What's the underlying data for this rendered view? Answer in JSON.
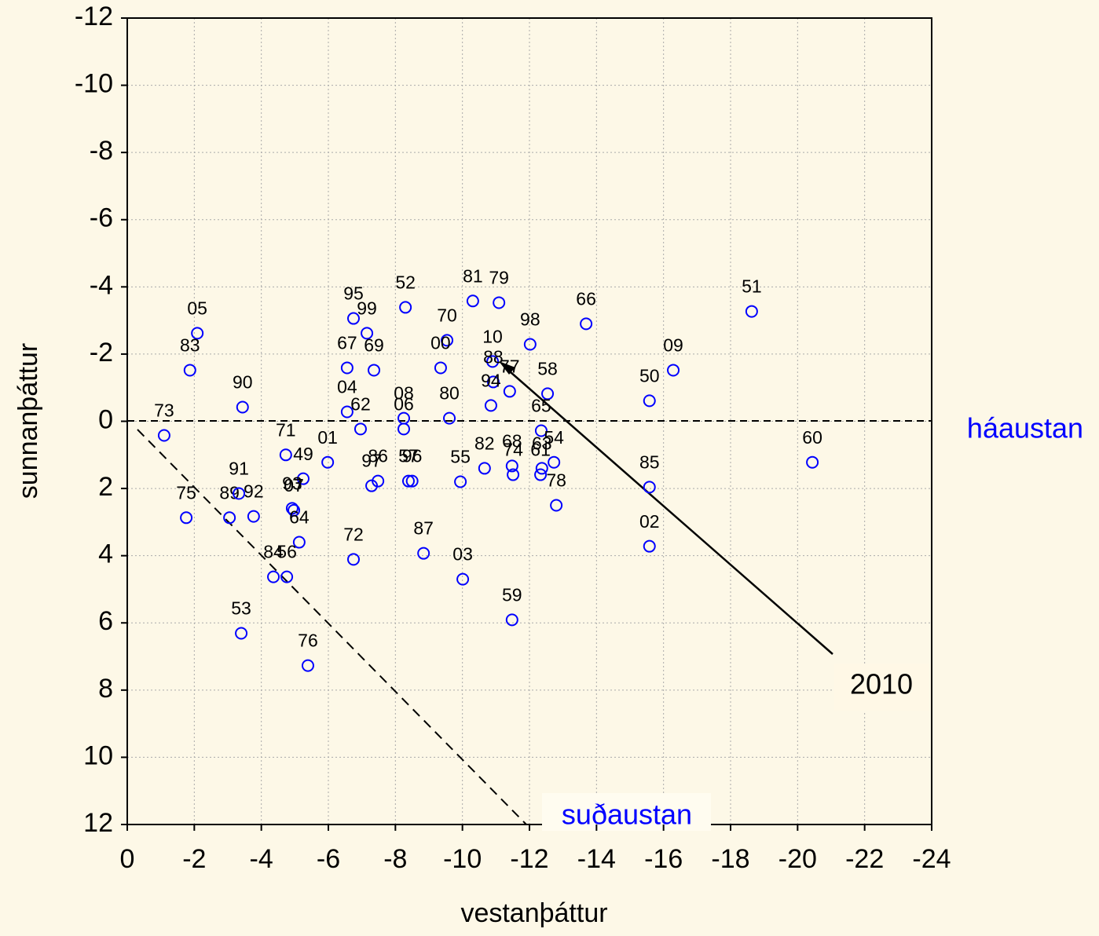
{
  "chart_data": {
    "type": "scatter",
    "x_label": "vestanþáttur",
    "y_label": "sunnanþáttur",
    "xlim": [
      0,
      -24
    ],
    "ylim": [
      -12,
      12
    ],
    "xticks": [
      0,
      -2,
      -4,
      -6,
      -8,
      -10,
      -12,
      -14,
      -16,
      -18,
      -20,
      -22,
      -24
    ],
    "yticks": [
      -12,
      -10,
      -8,
      -6,
      -4,
      -2,
      0,
      2,
      4,
      6,
      8,
      10,
      12
    ],
    "grid": true,
    "color": "#0000ff",
    "labels": [
      "05",
      "83",
      "90",
      "73",
      "75",
      "89",
      "91",
      "92",
      "71",
      "49",
      "01",
      "93",
      "07",
      "64",
      "84",
      "56",
      "53",
      "76",
      "95",
      "99",
      "67",
      "69",
      "04",
      "62",
      "72",
      "97",
      "86",
      "52",
      "08",
      "06",
      "57",
      "96",
      "70",
      "00",
      "80",
      "87",
      "55",
      "03",
      "81",
      "79",
      "10",
      "88",
      "94",
      "77",
      "82",
      "68",
      "74",
      "59",
      "98",
      "58",
      "65",
      "54",
      "63",
      "61",
      "78",
      "66",
      "51",
      "09",
      "50",
      "85",
      "02",
      "60"
    ],
    "x": [
      -2.09,
      -1.87,
      -3.44,
      -1.1,
      -1.76,
      -3.05,
      -3.33,
      -3.77,
      -4.73,
      -5.25,
      -5.98,
      -4.92,
      -4.97,
      -5.13,
      -4.36,
      -4.76,
      -3.4,
      -5.39,
      -6.75,
      -7.15,
      -6.56,
      -7.36,
      -6.56,
      -6.96,
      -6.75,
      -7.29,
      -7.48,
      -8.3,
      -8.25,
      -8.25,
      -8.39,
      -8.5,
      -9.54,
      -9.35,
      -9.61,
      -8.84,
      -9.94,
      -10.01,
      -10.31,
      -11.09,
      -10.9,
      -10.92,
      -10.85,
      -11.41,
      -10.66,
      -11.48,
      -11.51,
      -11.48,
      -12.02,
      -12.54,
      -12.35,
      -12.73,
      -12.37,
      -12.33,
      -12.8,
      -13.69,
      -18.63,
      -16.29,
      -15.58,
      -15.58,
      -15.58,
      -20.44
    ],
    "values": [
      -2.62,
      -1.52,
      -0.42,
      0.42,
      2.87,
      2.87,
      2.15,
      2.83,
      1.0,
      1.71,
      1.22,
      2.59,
      2.65,
      3.6,
      4.63,
      4.63,
      6.31,
      7.27,
      -3.06,
      -2.62,
      -1.59,
      -1.52,
      -0.28,
      0.23,
      4.11,
      1.92,
      1.78,
      -3.39,
      -0.09,
      0.23,
      1.78,
      1.78,
      -2.41,
      -1.59,
      -0.09,
      3.93,
      1.8,
      4.7,
      -3.58,
      -3.53,
      -1.78,
      -1.17,
      -0.47,
      -0.89,
      1.4,
      1.33,
      1.59,
      5.91,
      -2.29,
      -0.82,
      0.28,
      1.22,
      1.4,
      1.59,
      2.5,
      -2.9,
      -3.27,
      -1.52,
      -0.61,
      1.96,
      3.72,
      1.22
    ],
    "annotations": {
      "arrow_label": "2010",
      "east_label": "háaustan",
      "southeast_label": "suðaustan"
    }
  }
}
